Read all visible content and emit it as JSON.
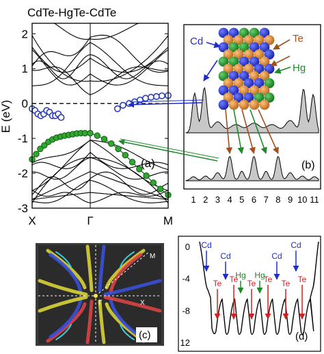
{
  "figure": {
    "title": "CdTe-HgTe-CdTe"
  },
  "panel_a": {
    "label": "(a)",
    "ylabel": "E (eV)",
    "yticks": [
      "-3",
      "-2",
      "-1",
      "0",
      "1",
      "2"
    ],
    "kpoints": [
      "X",
      "Γ",
      "M"
    ]
  },
  "panel_b": {
    "label": "(b)",
    "atom_labels": {
      "cd": "Cd",
      "te": "Te",
      "hg": "Hg"
    },
    "xticks": [
      "1",
      "2",
      "3",
      "4",
      "5",
      "6",
      "7",
      "8",
      "9",
      "10",
      "11"
    ]
  },
  "panel_c": {
    "label": "(c)",
    "point_labels": {
      "gamma": "Γ",
      "x": "X",
      "m": "M"
    }
  },
  "panel_d": {
    "label": "(d)",
    "yticks": [
      "0",
      "-4",
      "-8",
      "12"
    ],
    "top_labels": [
      "Cd",
      "Cd",
      "Hg",
      "Hg",
      "Cd",
      "Cd"
    ],
    "te_labels": [
      "Te",
      "Te",
      "Te",
      "Te",
      "Te",
      "Te"
    ]
  },
  "colors": {
    "surface_state": "#2a3fb5",
    "hg_band": "#2fa82f",
    "cd_blue": "#1f2ec8",
    "te_orange": "#c8782a",
    "hg_green": "#1f8a2a",
    "te_red": "#d42020",
    "profile_fill": "#c8c8c8"
  },
  "chart_data": [
    {
      "type": "line",
      "title": "CdTe-HgTe-CdTe",
      "ylabel": "E (eV)",
      "ylim": [
        -3,
        2.3
      ],
      "x_ticks": [
        "X",
        "Γ",
        "M"
      ],
      "x_tick_positions": [
        -1,
        0,
        1
      ],
      "reference_line": {
        "y": 0,
        "style": "dashed"
      },
      "series": [
        {
          "marker": "open-circle",
          "points": [
            [
              -1,
              -0.15
            ],
            [
              -0.95,
              -0.2
            ],
            [
              -0.9,
              -0.3
            ],
            [
              -0.85,
              -0.35
            ],
            [
              -0.8,
              -0.3
            ],
            [
              -0.75,
              -0.2
            ],
            [
              -0.7,
              -0.25
            ],
            [
              -0.65,
              -0.35
            ],
            [
              -0.6,
              -0.35
            ],
            [
              -0.55,
              -0.3
            ],
            [
              -0.5,
              -0.4
            ],
            [
              0.35,
              -0.15
            ],
            [
              0.42,
              -0.05
            ],
            [
              0.5,
              0
            ],
            [
              0.57,
              0.05
            ],
            [
              0.64,
              0.1
            ],
            [
              0.71,
              0.15
            ],
            [
              0.78,
              0.18
            ],
            [
              0.85,
              0.2
            ],
            [
              0.92,
              0.22
            ],
            [
              1,
              0.23
            ]
          ]
        },
        {
          "marker": "filled-circle",
          "points": [
            [
              -1,
              -1.6
            ],
            [
              -0.93,
              -1.45
            ],
            [
              -0.86,
              -1.3
            ],
            [
              -0.79,
              -1.2
            ],
            [
              -0.72,
              -1.1
            ],
            [
              -0.65,
              -1.03
            ],
            [
              -0.58,
              -0.98
            ],
            [
              -0.51,
              -0.95
            ],
            [
              -0.44,
              -0.92
            ],
            [
              -0.37,
              -0.9
            ],
            [
              -0.3,
              -0.88
            ],
            [
              -0.23,
              -0.86
            ],
            [
              -0.16,
              -0.85
            ],
            [
              -0.09,
              -0.85
            ],
            [
              0,
              -0.85
            ],
            [
              0.09,
              -0.92
            ],
            [
              0.18,
              -1.02
            ],
            [
              0.27,
              -1.15
            ],
            [
              0.36,
              -1.3
            ],
            [
              0.45,
              -1.48
            ],
            [
              0.54,
              -1.68
            ],
            [
              0.63,
              -1.88
            ],
            [
              0.72,
              -2.07
            ],
            [
              0.81,
              -2.27
            ],
            [
              0.9,
              -2.45
            ],
            [
              1,
              -2.62
            ]
          ]
        }
      ]
    },
    {
      "type": "area",
      "xticks": [
        1,
        2,
        3,
        4,
        5,
        6,
        7,
        8,
        9,
        10,
        11
      ]
    },
    {
      "type": "heatmap",
      "point_labels": [
        "Γ",
        "X",
        "M"
      ]
    },
    {
      "type": "line",
      "yticks": [
        "0",
        "-4",
        "-8",
        "12"
      ],
      "top_labels": [
        "Cd",
        "Cd",
        "Hg",
        "Hg",
        "Cd",
        "Cd"
      ],
      "te_labels": [
        "Te",
        "Te",
        "Te",
        "Te",
        "Te",
        "Te"
      ]
    }
  ]
}
